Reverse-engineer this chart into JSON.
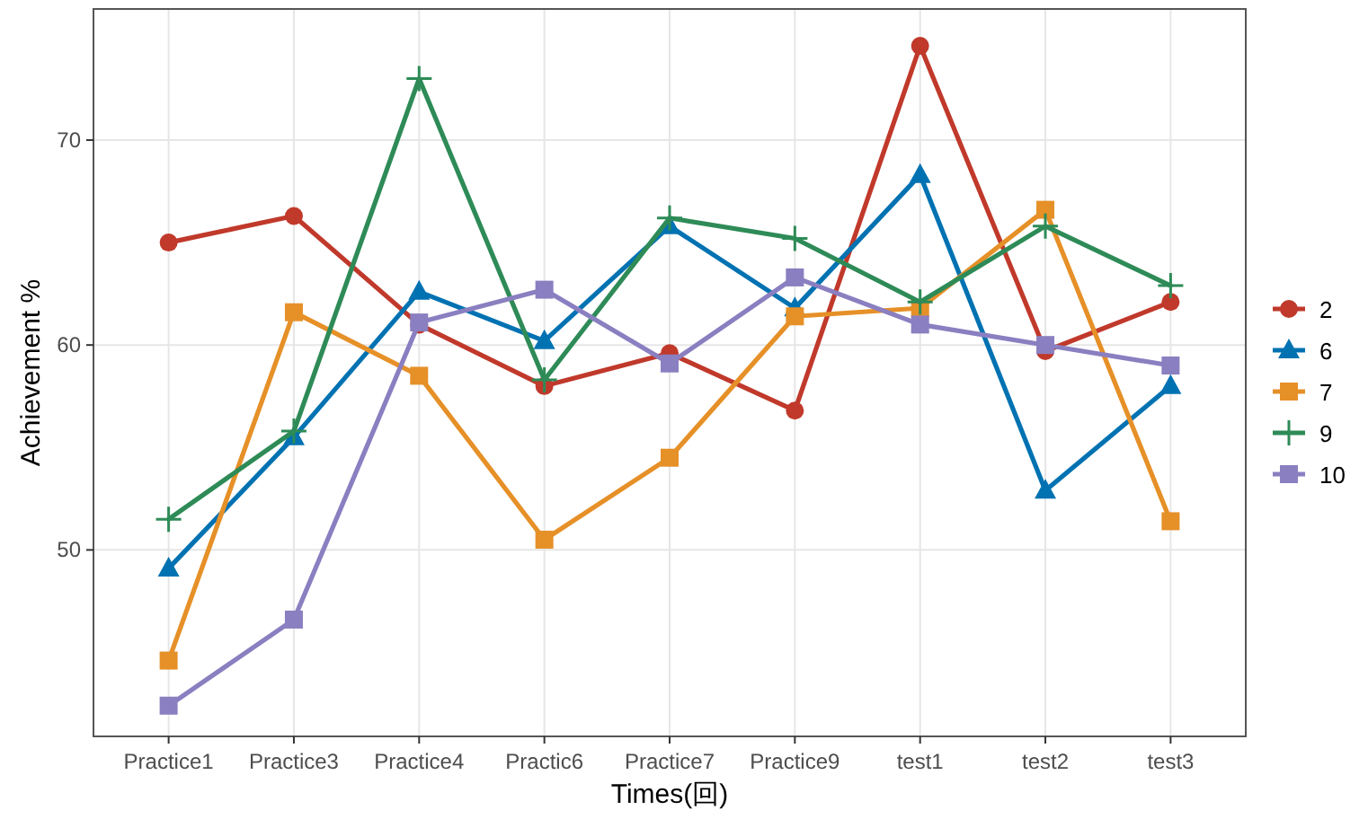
{
  "chart_data": {
    "type": "line",
    "xlabel": "Times(回)",
    "ylabel": "Achievement %",
    "categories": [
      "Practice1",
      "Practice3",
      "Practice4",
      "Practic6",
      "Practice7",
      "Practice9",
      "test1",
      "test2",
      "test3"
    ],
    "series": [
      {
        "name": "2",
        "color": "#c0392b",
        "marker": "circle",
        "values": [
          65.0,
          66.3,
          61.0,
          58.0,
          59.6,
          56.8,
          74.6,
          59.7,
          62.1
        ]
      },
      {
        "name": "6",
        "color": "#0072b2",
        "marker": "triangle",
        "values": [
          49.1,
          55.5,
          62.6,
          60.2,
          65.8,
          61.8,
          68.3,
          52.9,
          58.0
        ]
      },
      {
        "name": "7",
        "color": "#e69028",
        "marker": "square",
        "values": [
          44.6,
          61.6,
          58.5,
          50.5,
          54.5,
          61.4,
          61.8,
          66.6,
          51.4
        ]
      },
      {
        "name": "9",
        "color": "#2e8b57",
        "marker": "cross",
        "values": [
          51.5,
          55.8,
          73.0,
          58.3,
          66.2,
          65.2,
          62.1,
          65.8,
          62.9
        ]
      },
      {
        "name": "10",
        "color": "#8a7fc0",
        "marker": "square",
        "values": [
          42.4,
          46.6,
          61.1,
          62.7,
          59.1,
          63.3,
          61.0,
          60.0,
          59.0
        ]
      }
    ],
    "ylim": [
      40.9,
      76.4
    ],
    "yticks": [
      50,
      60,
      70
    ],
    "grid": true,
    "legend": "right",
    "line_style": "solid"
  }
}
